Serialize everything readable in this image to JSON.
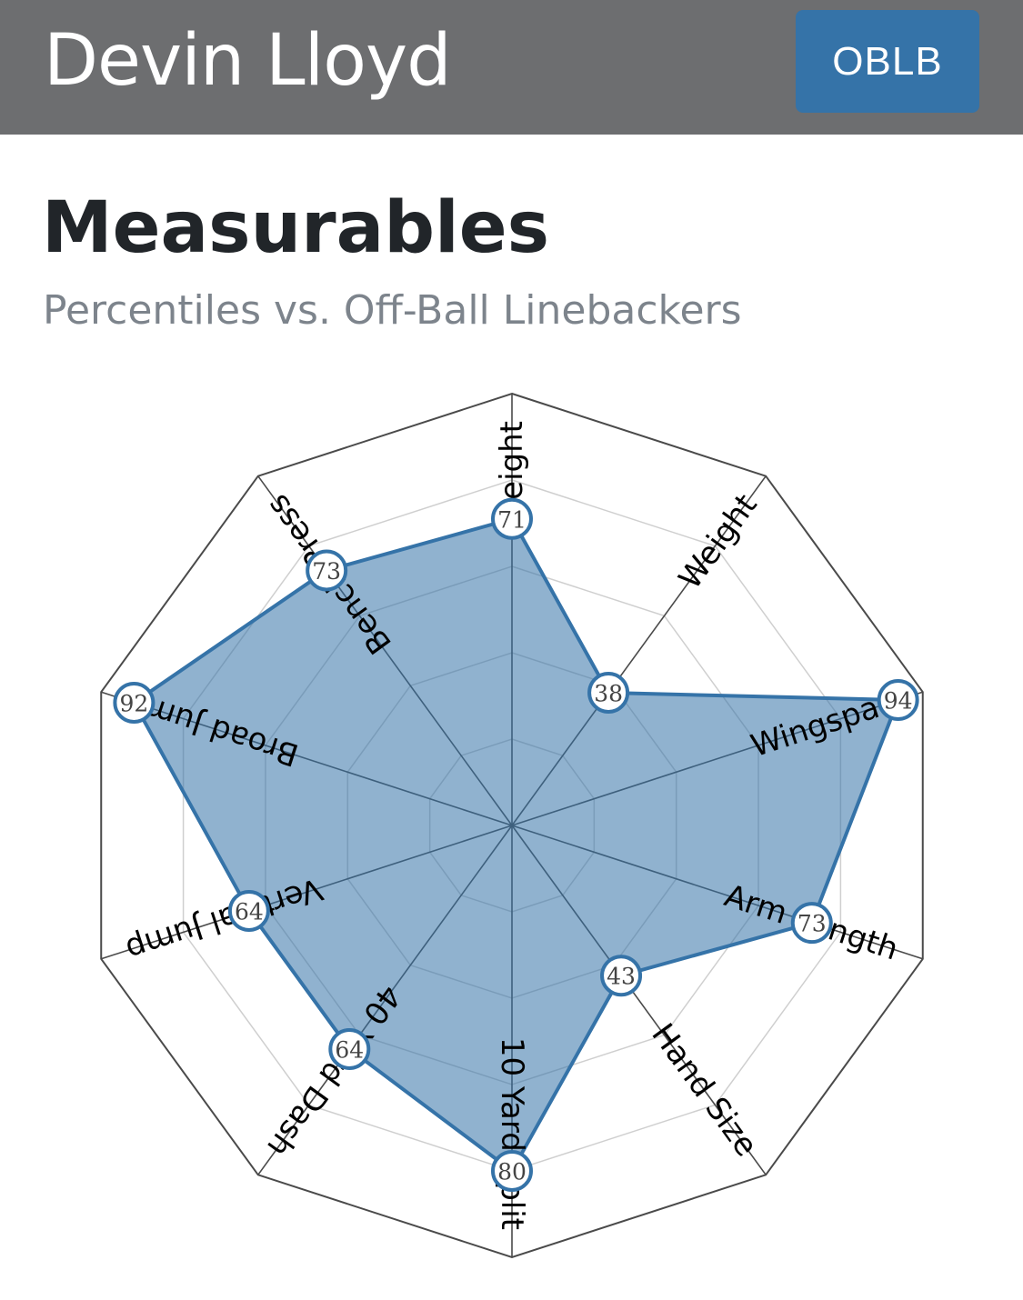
{
  "header": {
    "player_name": "Devin Lloyd",
    "position": "OBLB",
    "background_color": "#6d6e70",
    "badge_color": "#3573a8"
  },
  "section": {
    "title": "Measurables",
    "subtitle": "Percentiles vs. Off-Ball Linebackers"
  },
  "chart_data": {
    "type": "radar",
    "axes": [
      "Height",
      "Weight",
      "Wingspan",
      "Arm Length",
      "Hand Size",
      "10 Yard Split",
      "40 Yard Dash",
      "Vertical Jump",
      "Broad Jump",
      "Bench Press"
    ],
    "series": [
      {
        "values": [
          71,
          38,
          94,
          73,
          43,
          80,
          64,
          64,
          92,
          73
        ],
        "fill_color": "#3573a8",
        "line_color": "#3573a8"
      }
    ],
    "range": [
      0,
      100
    ],
    "grid_levels": [
      20,
      40,
      60,
      80,
      100
    ]
  }
}
